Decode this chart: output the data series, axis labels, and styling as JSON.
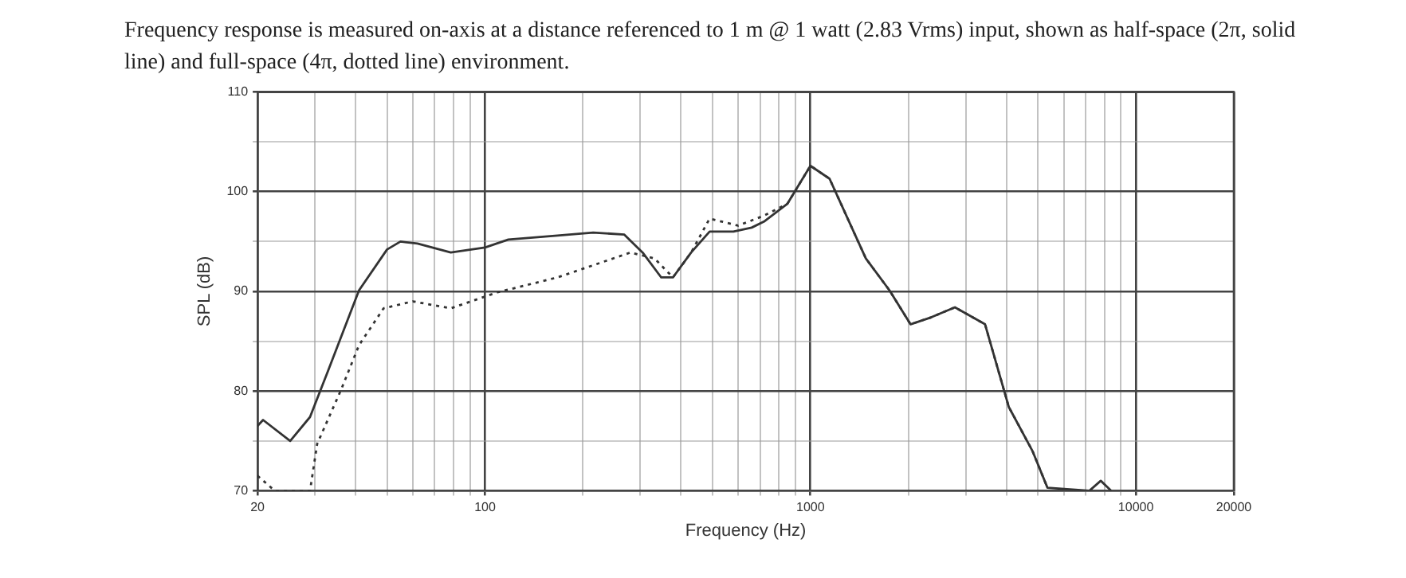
{
  "chart_data": {
    "type": "line",
    "title": "Frequency response is measured on-axis at a distance referenced to 1 m @ 1 watt (2.83 Vrms) input, shown as half-space (2π, solid line) and full-space (4π, dotted line) environment.",
    "xlabel": "Frequency (Hz)",
    "ylabel": "SPL (dB)",
    "log": "x",
    "grid": true,
    "marker": "none",
    "legend": false,
    "xlim": [
      20,
      20000
    ],
    "ylim": [
      70,
      110
    ],
    "xticks": [
      20,
      {
        "value": 30,
        "label": null
      },
      {
        "value": 40,
        "label": null
      },
      {
        "value": 50,
        "label": null
      },
      {
        "value": 60,
        "label": null
      },
      {
        "value": 70,
        "label": null
      },
      {
        "value": 80,
        "label": null
      },
      {
        "value": 90,
        "label": null
      },
      100,
      {
        "value": 200,
        "label": null
      },
      {
        "value": 300,
        "label": null
      },
      {
        "value": 400,
        "label": null
      },
      {
        "value": 500,
        "label": null
      },
      {
        "value": 600,
        "label": null
      },
      {
        "value": 700,
        "label": null
      },
      {
        "value": 800,
        "label": null
      },
      {
        "value": 900,
        "label": null
      },
      1000,
      {
        "value": 2000,
        "label": null
      },
      {
        "value": 3000,
        "label": null
      },
      {
        "value": 4000,
        "label": null
      },
      {
        "value": 5000,
        "label": null
      },
      {
        "value": 6000,
        "label": null
      },
      {
        "value": 7000,
        "label": null
      },
      {
        "value": 8000,
        "label": null
      },
      {
        "value": 9000,
        "label": null
      },
      10000,
      20000
    ],
    "yticks": [
      70,
      {
        "value": 75,
        "label": null
      },
      80,
      {
        "value": 85,
        "label": null
      },
      90,
      {
        "value": 95,
        "label": null
      },
      100,
      {
        "value": 105,
        "label": null
      },
      110
    ],
    "series": [
      {
        "color": "#333333",
        "line_style": "solid",
        "x": [
          20,
          20.8,
          25.2,
          29,
          33,
          41,
          50,
          55,
          62,
          78.5,
          100,
          118,
          167,
          215,
          268,
          305,
          348,
          378,
          430,
          490,
          580,
          660,
          720,
          850,
          1000,
          1145,
          1480,
          1750,
          2030,
          2350,
          2780,
          3440,
          4070,
          4810,
          5350,
          7200,
          7800,
          8400
        ],
        "values": [
          76.5,
          77.1,
          75.0,
          77.4,
          82.1,
          90.1,
          94.2,
          95.0,
          94.8,
          93.9,
          94.4,
          95.2,
          95.6,
          95.9,
          95.7,
          93.9,
          91.4,
          91.4,
          93.9,
          96.0,
          96.0,
          96.4,
          97.0,
          98.8,
          102.6,
          101.3,
          93.3,
          90.1,
          86.7,
          87.4,
          88.4,
          86.7,
          78.4,
          74.0,
          70.3,
          70,
          71,
          70
        ]
      },
      {
        "color": "#333333",
        "line_style": "dotted",
        "x": [
          20,
          22.6,
          29,
          30.5,
          36.2,
          41,
          48.8,
          60,
          78.5,
          109,
          167,
          280,
          332,
          378,
          430,
          490,
          600,
          720,
          850,
          1000,
          1145,
          1480,
          1750,
          2030,
          2350,
          2780,
          3440,
          4070,
          4810,
          5350
        ],
        "values": [
          71.5,
          70,
          70,
          74.7,
          80.2,
          84.6,
          88.3,
          89.0,
          88.3,
          89.9,
          91.4,
          93.9,
          93.3,
          91.4,
          93.9,
          97.3,
          96.6,
          97.6,
          98.8,
          102.6,
          101.3,
          93.3,
          90.1,
          86.7,
          87.4,
          88.4,
          86.7,
          78.4,
          74.0,
          70.3
        ]
      }
    ]
  }
}
